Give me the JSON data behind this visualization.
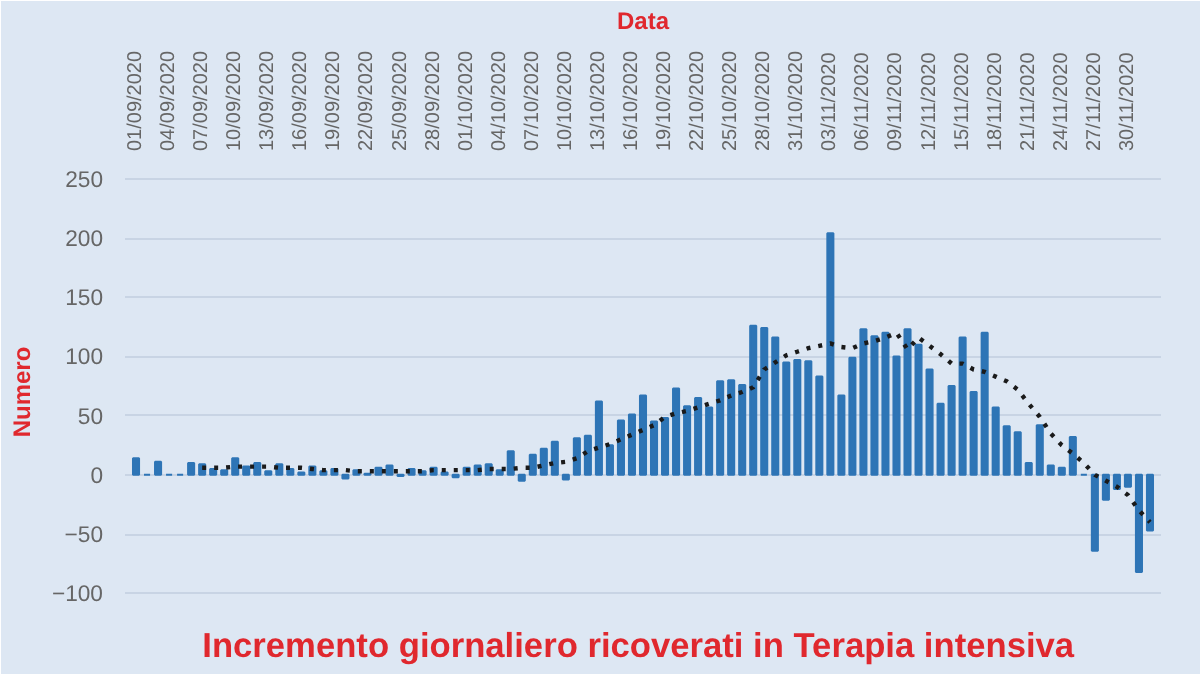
{
  "chart_data": {
    "type": "bar",
    "title": "Incremento  giornaliero ricoverati in Terapia intensiva",
    "xlabel": "Data",
    "ylabel": "Numero",
    "categories": [
      "01/09/2020",
      null,
      null,
      "04/09/2020",
      null,
      null,
      "07/09/2020",
      null,
      null,
      "10/09/2020",
      null,
      null,
      "13/09/2020",
      null,
      null,
      "16/09/2020",
      null,
      null,
      "19/09/2020",
      null,
      null,
      "22/09/2020",
      null,
      null,
      "25/09/2020",
      null,
      null,
      "28/09/2020",
      null,
      null,
      "01/10/2020",
      null,
      null,
      "04/10/2020",
      null,
      null,
      "07/10/2020",
      null,
      null,
      "10/10/2020",
      null,
      null,
      "13/10/2020",
      null,
      null,
      "16/10/2020",
      null,
      null,
      "19/10/2020",
      null,
      null,
      "22/10/2020",
      null,
      null,
      "25/10/2020",
      null,
      null,
      "28/10/2020",
      null,
      null,
      "31/10/2020",
      null,
      null,
      "03/11/2020",
      null,
      null,
      "06/11/2020",
      null,
      null,
      "09/11/2020",
      null,
      null,
      "12/11/2020",
      null,
      null,
      "15/11/2020",
      null,
      null,
      "18/11/2020",
      null,
      null,
      "21/11/2020",
      null,
      null,
      "24/11/2020",
      null,
      null,
      "27/11/2020",
      null,
      null,
      "30/11/2020",
      null,
      null
    ],
    "series": [
      {
        "color": "#2e75b6",
        "values": [
          14,
          0,
          11,
          0,
          0,
          10,
          9,
          5,
          4,
          14,
          7,
          10,
          3,
          9,
          5,
          2,
          7,
          3,
          5,
          -3,
          4,
          1,
          6,
          8,
          -1,
          5,
          3,
          6,
          2,
          -2,
          6,
          8,
          9,
          4,
          20,
          -5,
          17,
          22,
          28,
          -4,
          31,
          33,
          62,
          25,
          46,
          51,
          67,
          45,
          48,
          73,
          58,
          65,
          57,
          79,
          80,
          76,
          126,
          124,
          116,
          95,
          97,
          96,
          83,
          204,
          67,
          99,
          123,
          117,
          120,
          100,
          123,
          110,
          89,
          60,
          75,
          116,
          70,
          120,
          57,
          41,
          36,
          10,
          42,
          8,
          6,
          32,
          0,
          -64,
          -21,
          -12,
          -10,
          -82,
          -47
        ]
      },
      {
        "type": "line",
        "color": "#1a1a1a",
        "line_style": "dotted",
        "values": [
          null,
          null,
          null,
          null,
          null,
          null,
          6,
          6,
          6,
          7,
          7,
          7,
          7,
          6,
          6,
          6,
          5,
          4,
          4,
          4,
          3,
          3,
          3,
          3,
          3,
          3,
          3,
          4,
          4,
          4,
          4,
          4,
          5,
          5,
          5,
          6,
          6,
          8,
          10,
          11,
          14,
          20,
          23,
          26,
          30,
          34,
          38,
          42,
          49,
          52,
          54,
          57,
          60,
          63,
          67,
          70,
          74,
          89,
          95,
          101,
          104,
          107,
          109,
          111,
          108,
          107,
          111,
          113,
          116,
          120,
          106,
          116,
          109,
          102,
          94,
          94,
          89,
          87,
          83,
          79,
          72,
          60,
          49,
          35,
          25,
          18,
          10,
          0,
          -5,
          -10,
          -17,
          -30,
          -40
        ]
      }
    ],
    "ylim": [
      -115,
      255
    ],
    "yticks": [
      -100,
      -50,
      0,
      50,
      100,
      150,
      200,
      250
    ],
    "grid": "y"
  }
}
